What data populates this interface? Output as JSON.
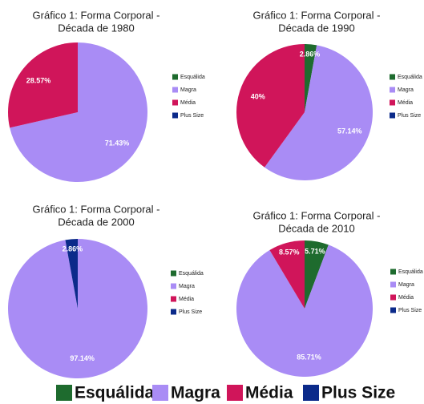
{
  "chart_data": [
    {
      "type": "pie",
      "title": [
        "Gráfico 1: Forma Corporal -",
        "Década de 1980"
      ],
      "categories": [
        "Esquálida",
        "Magra",
        "Média",
        "Plus Size"
      ],
      "values": [
        0,
        71.43,
        28.57,
        0
      ],
      "value_labels": [
        null,
        "71.43%",
        "28.57%",
        null
      ],
      "colors": [
        "#1e6b2e",
        "#a98cf5",
        "#d0155a",
        "#0b2a8a"
      ]
    },
    {
      "type": "pie",
      "title": [
        "Gráfico 1: Forma Corporal -",
        "Década de 1990"
      ],
      "categories": [
        "Esquálida",
        "Magra",
        "Média",
        "Plus Size"
      ],
      "values": [
        2.86,
        57.14,
        40,
        0
      ],
      "value_labels": [
        "2.86%",
        "57.14%",
        "40%",
        null
      ],
      "colors": [
        "#1e6b2e",
        "#a98cf5",
        "#d0155a",
        "#0b2a8a"
      ]
    },
    {
      "type": "pie",
      "title": [
        "Gráfico 1: Forma Corporal -",
        "Década de 2000"
      ],
      "categories": [
        "Esquálida",
        "Magra",
        "Média",
        "Plus Size"
      ],
      "values": [
        0,
        97.14,
        0,
        2.86
      ],
      "value_labels": [
        null,
        "97.14%",
        null,
        "2.86%"
      ],
      "colors": [
        "#1e6b2e",
        "#a98cf5",
        "#d0155a",
        "#0b2a8a"
      ]
    },
    {
      "type": "pie",
      "title": [
        "Gráfico 1: Forma Corporal -",
        "Década de 2010"
      ],
      "categories": [
        "Esquálida",
        "Magra",
        "Média",
        "Plus Size"
      ],
      "values": [
        5.71,
        85.71,
        8.57,
        0
      ],
      "value_labels": [
        "5.71%",
        "85.71%",
        "8.57%",
        null
      ],
      "colors": [
        "#1e6b2e",
        "#a98cf5",
        "#d0155a",
        "#0b2a8a"
      ]
    }
  ],
  "legend": {
    "labels": [
      "Esquálida",
      "Magra",
      "Média",
      "Plus Size"
    ],
    "colors": [
      "#1e6b2e",
      "#a98cf5",
      "#d0155a",
      "#0b2a8a"
    ]
  }
}
